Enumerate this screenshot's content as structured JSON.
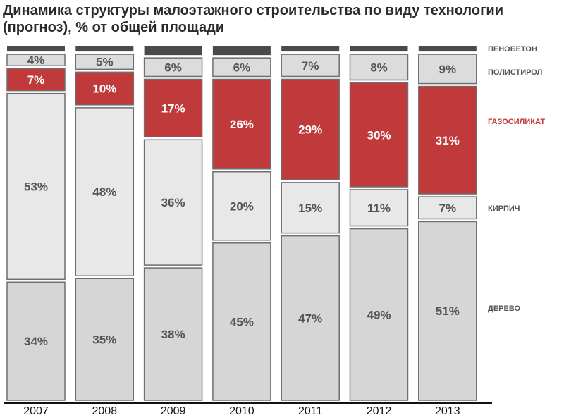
{
  "title": "Динамика структуры малоэтажного строительства по виду технологии (прогноз), % от общей площади",
  "colors": {
    "penobeton": "#4a4a4a",
    "polistirol": "#dcdcdc",
    "gazosilikat": "#c0393b",
    "kirpich": "#e8e8e8",
    "derevo": "#d6d6d6",
    "border": "#6e6e6e",
    "text_dark": "#555555",
    "text_light": "#ffffff",
    "legend_red": "#c0393b",
    "axis": "#111111"
  },
  "chart_data": {
    "type": "bar",
    "stacked": true,
    "title": "Динамика структуры малоэтажного строительства по виду технологии (прогноз), % от общей площади",
    "categories": [
      "2007",
      "2008",
      "2009",
      "2010",
      "2011",
      "2012",
      "2013"
    ],
    "series": [
      {
        "name": "ДЕРЕВО",
        "key": "derevo",
        "values": [
          34,
          35,
          38,
          45,
          47,
          49,
          51
        ],
        "value_labels": [
          "34%",
          "35%",
          "38%",
          "45%",
          "47%",
          "49%",
          "51%"
        ]
      },
      {
        "name": "КИРПИЧ",
        "key": "kirpich",
        "values": [
          53,
          48,
          36,
          20,
          15,
          11,
          7
        ],
        "value_labels": [
          "53%",
          "48%",
          "36%",
          "20%",
          "15%",
          "11%",
          "7%"
        ]
      },
      {
        "name": "ГАЗОСИЛИКАТ",
        "key": "gazosilikat",
        "values": [
          7,
          10,
          17,
          26,
          29,
          30,
          31
        ],
        "value_labels": [
          "7%",
          "10%",
          "17%",
          "26%",
          "29%",
          "30%",
          "31%"
        ]
      },
      {
        "name": "ПОЛИСТИРОЛ",
        "key": "polistirol",
        "values": [
          4,
          5,
          6,
          6,
          7,
          8,
          9
        ],
        "value_labels": [
          "4%",
          "5%",
          "6%",
          "6%",
          "7%",
          "8%",
          "9%"
        ]
      },
      {
        "name": "ПЕНОБЕТОН",
        "key": "penobeton",
        "values": [
          2,
          2,
          3,
          3,
          2,
          2,
          2
        ],
        "value_labels": [
          "",
          "",
          "",
          "",
          "",
          "",
          ""
        ]
      }
    ],
    "ylim": [
      0,
      100
    ],
    "legend_position": "right",
    "grid": false
  }
}
